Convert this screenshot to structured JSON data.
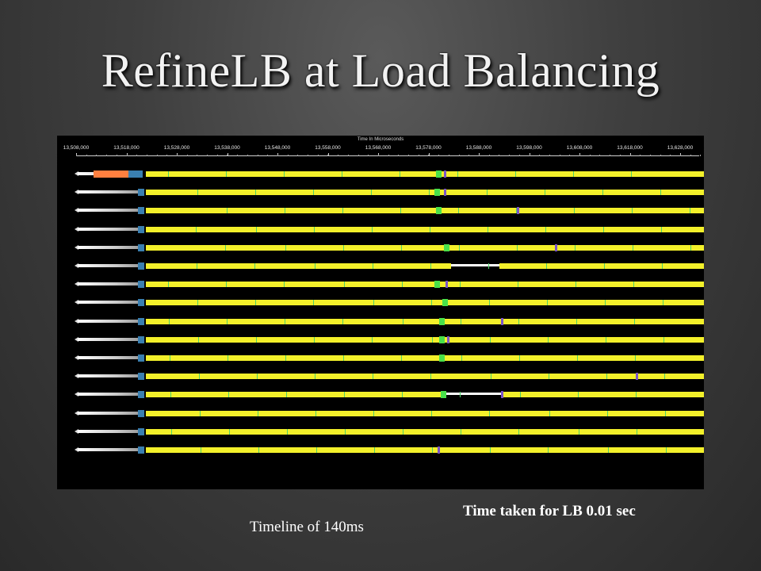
{
  "slide": {
    "title": "RefineLB at Load Balancing",
    "lb_caption": "Time taken for LB 0.01 sec",
    "timeline_caption": "Timeline of 140ms"
  },
  "timeline": {
    "axis_title": "Time In Microseconds",
    "tick_labels": [
      "13,508,000",
      "13,518,000",
      "13,528,000",
      "13,538,000",
      "13,548,000",
      "13,558,000",
      "13,568,000",
      "13,578,000",
      "13,588,000",
      "13,598,000",
      "13,608,000",
      "13,618,000",
      "13,628,000"
    ],
    "pe_count": 16,
    "colors": {
      "background": "#000000",
      "compute": "#f3f02a",
      "lb_phase": "#ff7f3f",
      "sync": "#3a7fb0",
      "migration": "#49e04a",
      "marker": "#7b56c7",
      "idle": "#ffffff"
    }
  }
}
